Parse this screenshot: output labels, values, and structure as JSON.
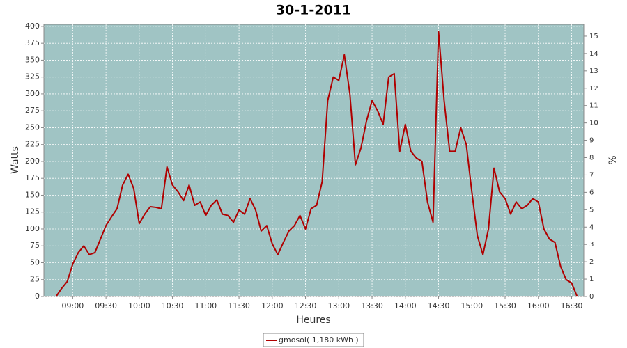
{
  "chart_data": {
    "type": "line",
    "title": "30-1-2011",
    "xlabel": "Heures",
    "ylabel": "Watts",
    "y2label": "%",
    "x": [
      "08:45",
      "08:50",
      "08:55",
      "09:00",
      "09:05",
      "09:10",
      "09:15",
      "09:20",
      "09:25",
      "09:30",
      "09:35",
      "09:40",
      "09:45",
      "09:50",
      "09:55",
      "10:00",
      "10:05",
      "10:10",
      "10:15",
      "10:20",
      "10:25",
      "10:30",
      "10:35",
      "10:40",
      "10:45",
      "10:50",
      "10:55",
      "11:00",
      "11:05",
      "11:10",
      "11:15",
      "11:20",
      "11:25",
      "11:30",
      "11:35",
      "11:40",
      "11:45",
      "11:50",
      "11:55",
      "12:00",
      "12:05",
      "12:10",
      "12:15",
      "12:20",
      "12:25",
      "12:30",
      "12:35",
      "12:40",
      "12:45",
      "12:50",
      "12:55",
      "13:00",
      "13:05",
      "13:10",
      "13:15",
      "13:20",
      "13:25",
      "13:30",
      "13:35",
      "13:40",
      "13:45",
      "13:50",
      "13:55",
      "14:00",
      "14:05",
      "14:10",
      "14:15",
      "14:20",
      "14:25",
      "14:30",
      "14:35",
      "14:40",
      "14:45",
      "14:50",
      "14:55",
      "15:00",
      "15:05",
      "15:10",
      "15:15",
      "15:20",
      "15:25",
      "15:30",
      "15:35",
      "15:40",
      "15:45",
      "15:50",
      "15:55",
      "16:00",
      "16:05",
      "16:10",
      "16:15",
      "16:20",
      "16:25",
      "16:30",
      "16:35"
    ],
    "series": [
      {
        "name": "gmosol( 1,180 kWh )",
        "color": "#b00000",
        "values": [
          0,
          12,
          22,
          48,
          65,
          75,
          62,
          65,
          85,
          105,
          118,
          130,
          165,
          181,
          160,
          108,
          122,
          133,
          132,
          130,
          192,
          165,
          155,
          142,
          165,
          135,
          140,
          120,
          135,
          143,
          122,
          120,
          110,
          128,
          122,
          145,
          128,
          97,
          105,
          78,
          62,
          80,
          97,
          105,
          120,
          100,
          130,
          135,
          170,
          290,
          325,
          320,
          358,
          300,
          195,
          220,
          260,
          290,
          275,
          255,
          325,
          330,
          215,
          255,
          215,
          205,
          200,
          140,
          110,
          392,
          290,
          215,
          215,
          250,
          225,
          155,
          90,
          62,
          100,
          190,
          155,
          145,
          122,
          140,
          130,
          135,
          145,
          140,
          100,
          85,
          80,
          45,
          25,
          20,
          0
        ]
      }
    ],
    "xlim": [
      "08:34",
      "16:41"
    ],
    "xticks": [
      "09:00",
      "09:30",
      "10:00",
      "10:30",
      "11:00",
      "11:30",
      "12:00",
      "12:30",
      "13:00",
      "13:30",
      "14:00",
      "14:30",
      "15:00",
      "15:30",
      "16:00",
      "16:30"
    ],
    "ylim": [
      0,
      403
    ],
    "yticks": [
      0,
      25,
      50,
      75,
      100,
      125,
      150,
      175,
      200,
      225,
      250,
      275,
      300,
      325,
      350,
      375,
      400
    ],
    "y2lim": [
      0,
      15.68
    ],
    "y2ticks": [
      0,
      1,
      2,
      3,
      4,
      5,
      6,
      7,
      8,
      9,
      10,
      11,
      12,
      13,
      14,
      15
    ],
    "grid": true,
    "plot_background": "#a0c4c4",
    "legend_position": "bottom"
  }
}
